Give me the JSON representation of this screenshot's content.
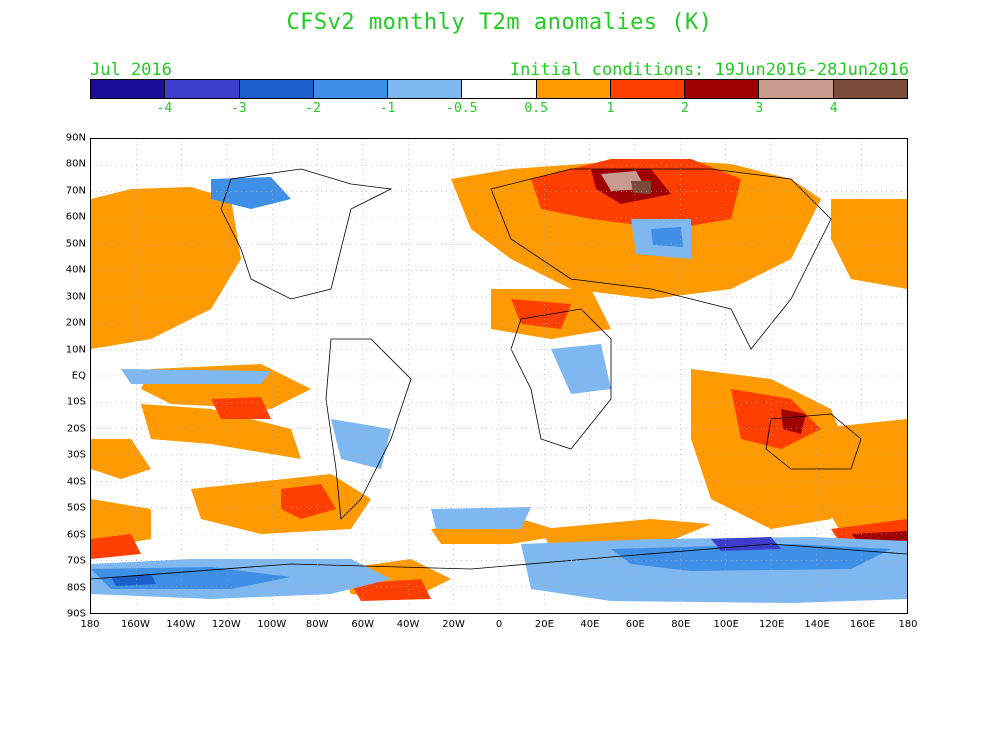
{
  "title": "CFSv2 monthly T2m anomalies (K)",
  "forecast_month": "Jul 2016",
  "initial_conditions": "Initial conditions: 19Jun2016-28Jun2016",
  "colorbar": {
    "colors": [
      "#1a0d99",
      "#3d3dcc",
      "#1a5fcc",
      "#3f8fe6",
      "#7fb8f0",
      "#ffffff",
      "#ff9a00",
      "#ff3f00",
      "#a00000",
      "#c89b8f",
      "#7a4a3a"
    ],
    "labels": [
      "-4",
      "-3",
      "-2",
      "-1",
      "-0.5",
      "0.5",
      "1",
      "2",
      "3",
      "4"
    ]
  },
  "axes": {
    "lat_labels": [
      "90N",
      "80N",
      "70N",
      "60N",
      "50N",
      "40N",
      "30N",
      "20N",
      "10N",
      "EQ",
      "10S",
      "20S",
      "30S",
      "40S",
      "50S",
      "60S",
      "70S",
      "80S",
      "90S"
    ],
    "lon_labels": [
      "180",
      "160W",
      "140W",
      "120W",
      "100W",
      "80W",
      "60W",
      "40W",
      "20W",
      "0",
      "20E",
      "40E",
      "60E",
      "80E",
      "100E",
      "120E",
      "140E",
      "160E",
      "180"
    ]
  }
}
